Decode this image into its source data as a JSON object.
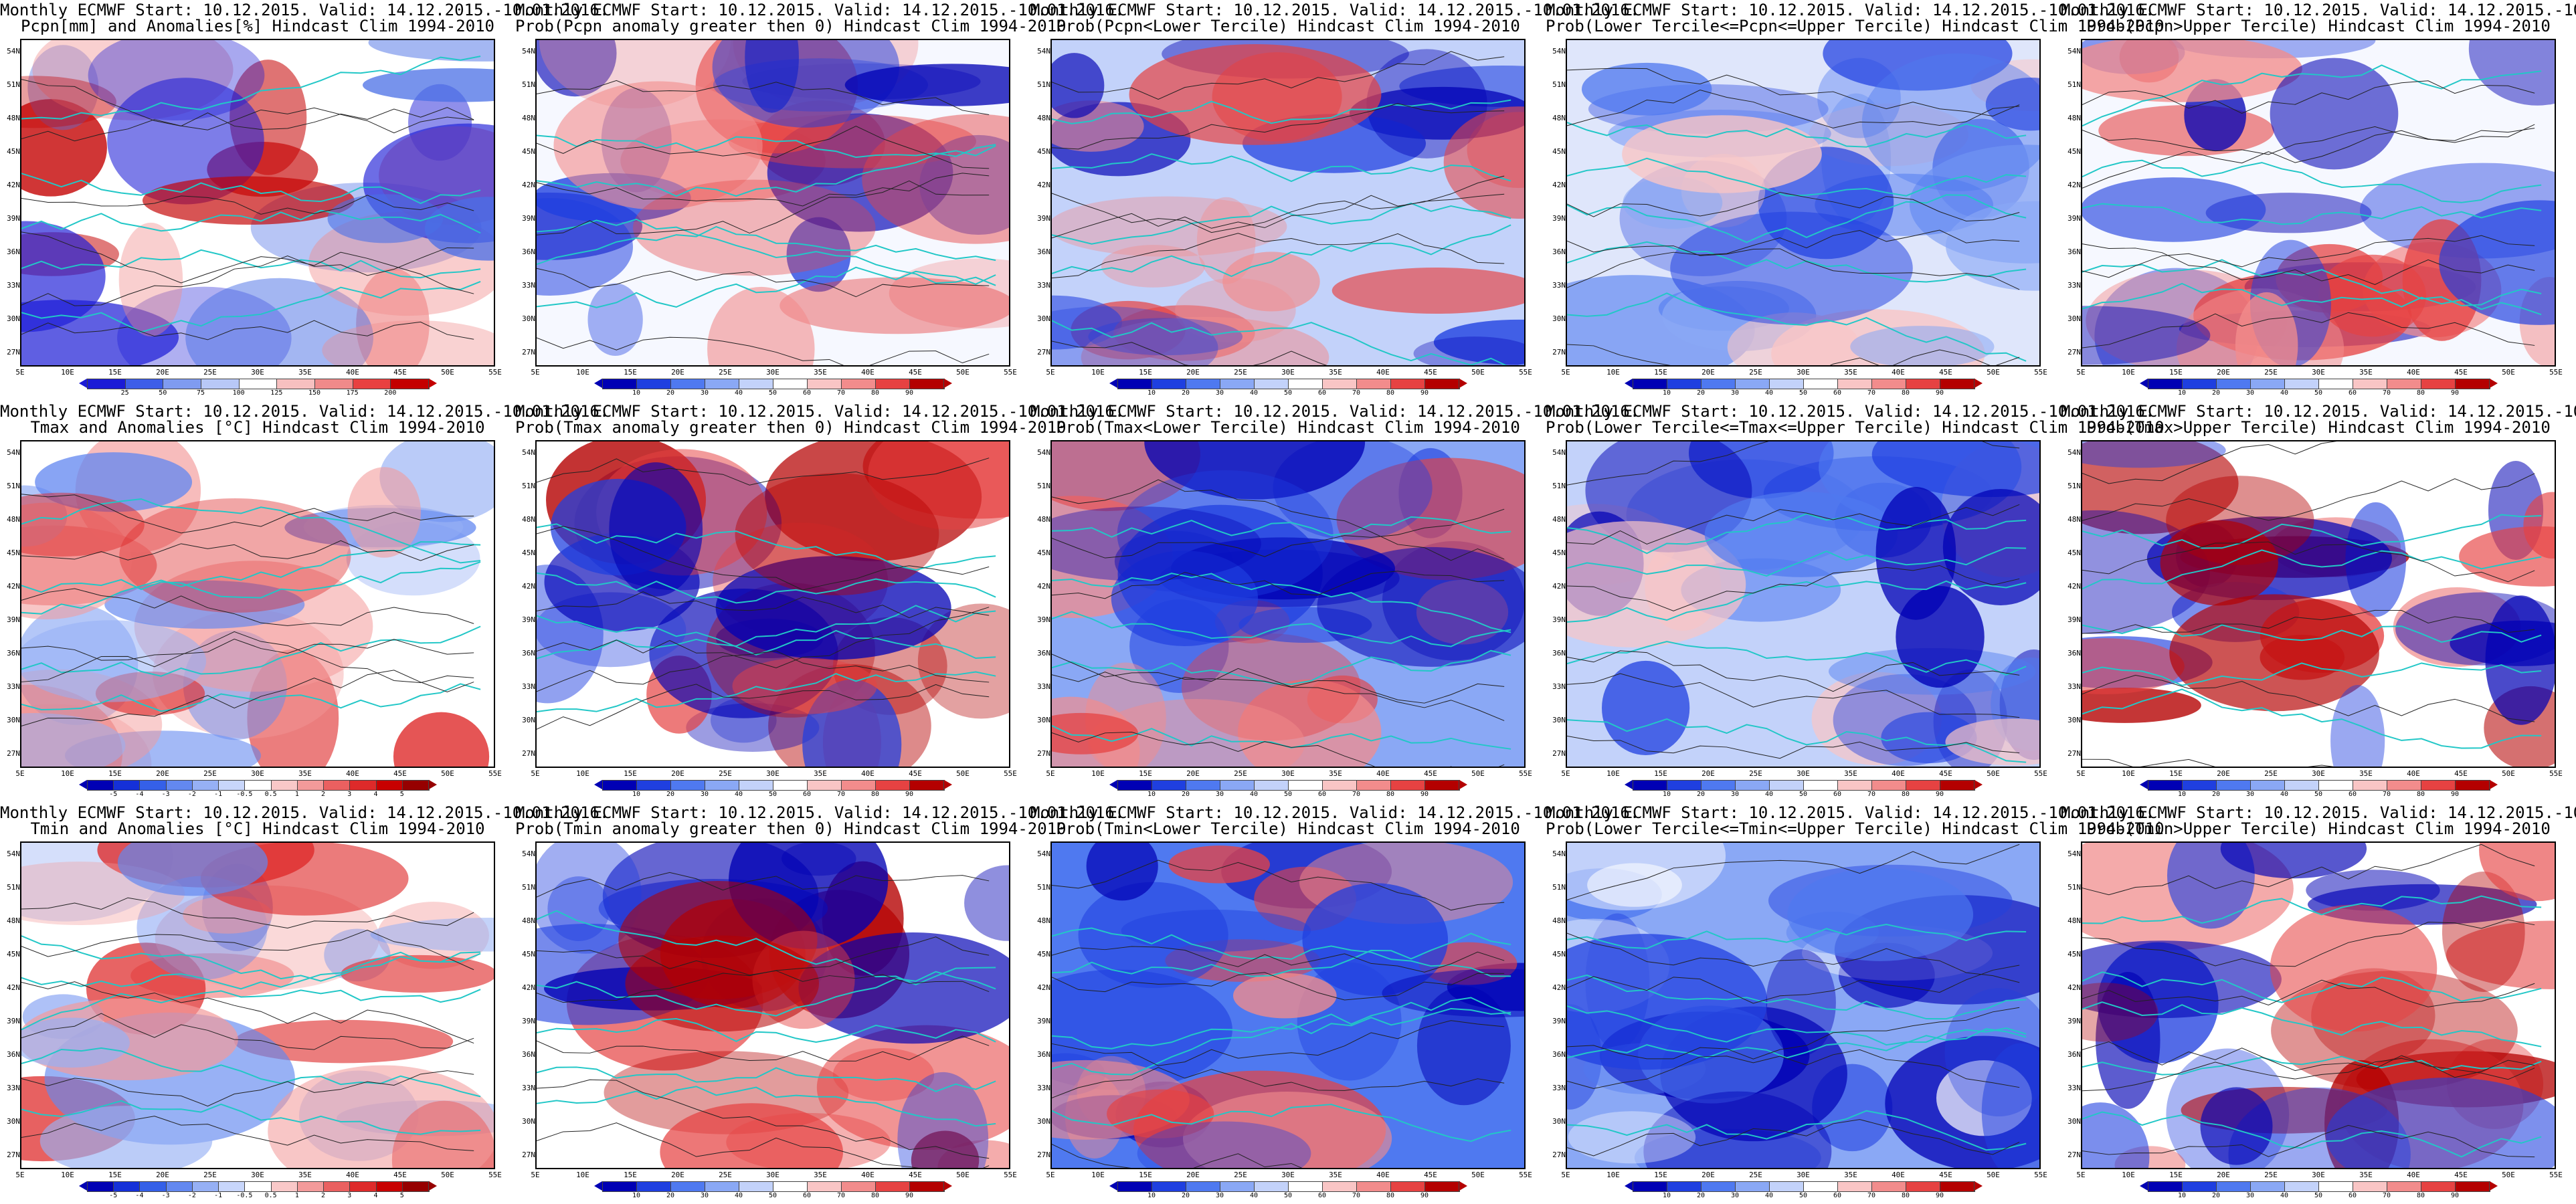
{
  "header_line": "Monthly ECMWF Start: 10.12.2015. Valid: 14.12.2015.-10.01.2016.",
  "lat_labels": [
    "54N",
    "51N",
    "48N",
    "45N",
    "42N",
    "39N",
    "36N",
    "33N",
    "30N",
    "27N"
  ],
  "lon_labels": [
    "5E",
    "10E",
    "15E",
    "20E",
    "25E",
    "30E",
    "35E",
    "40E",
    "45E",
    "50E",
    "55E"
  ],
  "colorbars": {
    "pcpn": {
      "labels": [
        "25",
        "50",
        "75",
        "100",
        "125",
        "150",
        "175",
        "200"
      ],
      "colors": [
        "#1b1bd6",
        "#3d5ee8",
        "#7f9bf0",
        "#b8c8f7",
        "#ffffff",
        "#f7c0c0",
        "#f08a8a",
        "#e84040",
        "#c40000"
      ]
    },
    "prob": {
      "labels": [
        "10",
        "20",
        "30",
        "40",
        "50",
        "60",
        "70",
        "80",
        "90"
      ],
      "colors": [
        "#0000b4",
        "#1f3fe0",
        "#4f79f0",
        "#8aa8f5",
        "#c3d2fa",
        "#ffffff",
        "#f9c5c5",
        "#f28c8c",
        "#e64242",
        "#b40000"
      ]
    },
    "anom": {
      "labels": [
        "-5",
        "-4",
        "-3",
        "-2",
        "-1",
        "-0.5",
        "0.5",
        "1",
        "2",
        "3",
        "4",
        "5"
      ],
      "colors": [
        "#0000b4",
        "#1530d8",
        "#3560e8",
        "#6388f0",
        "#96b0f5",
        "#c8d6fb",
        "#ffffff",
        "#f9c8c8",
        "#f39a9a",
        "#ea6060",
        "#de2a2a",
        "#c80000",
        "#960000"
      ]
    }
  },
  "panels": [
    {
      "title2": "Pcpn[mm] and Anomalies[%] Hindcast Clim 1994-2010",
      "cbar": "pcpn",
      "base": "#ffffff",
      "blob": [
        "#4a6fe6",
        "#1b1bd6",
        "#f08a8a",
        "#c40000"
      ]
    },
    {
      "title2": "Prob(Pcpn anomaly greater then 0) Hindcast Clim 1994-2010",
      "cbar": "prob",
      "base": "#f6f8ff",
      "blob": [
        "#1f3fe0",
        "#0000b4",
        "#f28c8c",
        "#e64242"
      ]
    },
    {
      "title2": "Prob(Pcpn<Lower Tercile) Hindcast Clim 1994-2010",
      "cbar": "prob",
      "base": "#c3d2fa",
      "blob": [
        "#f28c8c",
        "#e64242",
        "#1f3fe0",
        "#0000b4"
      ]
    },
    {
      "title2": "Prob(Lower Tercile<=Pcpn<=Upper Tercile) Hindcast Clim 1994-2010",
      "cbar": "prob",
      "base": "#dfe6fb",
      "blob": [
        "#4f79f0",
        "#1f3fe0",
        "#8aa8f5",
        "#f9c5c5"
      ]
    },
    {
      "title2": "Prob(Pcpn>Upper Tercile) Hindcast Clim 1994-2010",
      "cbar": "prob",
      "base": "#f6f8ff",
      "blob": [
        "#1f3fe0",
        "#0000b4",
        "#f28c8c",
        "#e64242"
      ]
    },
    {
      "title2": "Tmax and Anomalies [°C] Hindcast Clim 1994-2010",
      "cbar": "anom",
      "base": "#ffffff",
      "blob": [
        "#f39a9a",
        "#de2a2a",
        "#96b0f5",
        "#6388f0"
      ]
    },
    {
      "title2": "Prob(Tmax anomaly greater then 0) Hindcast Clim 1994-2010",
      "cbar": "prob",
      "base": "#ffffff",
      "blob": [
        "#e64242",
        "#b40000",
        "#1f3fe0",
        "#0000b4"
      ]
    },
    {
      "title2": "Prob(Tmax<Lower Tercile) Hindcast Clim 1994-2010",
      "cbar": "prob",
      "base": "#8aa8f5",
      "blob": [
        "#1f3fe0",
        "#0000b4",
        "#f28c8c",
        "#e64242"
      ]
    },
    {
      "title2": "Prob(Lower Tercile<=Tmax<=Upper Tercile) Hindcast Clim 1994-2010",
      "cbar": "prob",
      "base": "#c3d2fa",
      "blob": [
        "#1f3fe0",
        "#0000b4",
        "#f9c5c5",
        "#4f79f0"
      ]
    },
    {
      "title2": "Prob(Tmax>Upper Tercile) Hindcast Clim 1994-2010",
      "cbar": "prob",
      "base": "#ffffff",
      "blob": [
        "#e64242",
        "#b40000",
        "#1f3fe0",
        "#0000b4"
      ]
    },
    {
      "title2": "Tmin and Anomalies [°C] Hindcast Clim 1994-2010",
      "cbar": "anom",
      "base": "#ffffff",
      "blob": [
        "#f39a9a",
        "#de2a2a",
        "#96b0f5",
        "#6388f0"
      ]
    },
    {
      "title2": "Prob(Tmin anomaly greater then 0) Hindcast Clim 1994-2010",
      "cbar": "prob",
      "base": "#ffffff",
      "blob": [
        "#e64242",
        "#b40000",
        "#1f3fe0",
        "#0000b4"
      ]
    },
    {
      "title2": "Prob(Tmin<Lower Tercile) Hindcast Clim 1994-2010",
      "cbar": "prob",
      "base": "#4f79f0",
      "blob": [
        "#1f3fe0",
        "#0000b4",
        "#f28c8c",
        "#e64242"
      ]
    },
    {
      "title2": "Prob(Lower Tercile<=Tmin<=Upper Tercile) Hindcast Clim 1994-2010",
      "cbar": "prob",
      "base": "#8aa8f5",
      "blob": [
        "#1f3fe0",
        "#0000b4",
        "#ffffff",
        "#4f79f0"
      ]
    },
    {
      "title2": "Prob(Tmin>Upper Tercile) Hindcast Clim 1994-2010",
      "cbar": "prob",
      "base": "#ffffff",
      "blob": [
        "#e64242",
        "#b40000",
        "#1f3fe0",
        "#0000b4"
      ]
    }
  ]
}
